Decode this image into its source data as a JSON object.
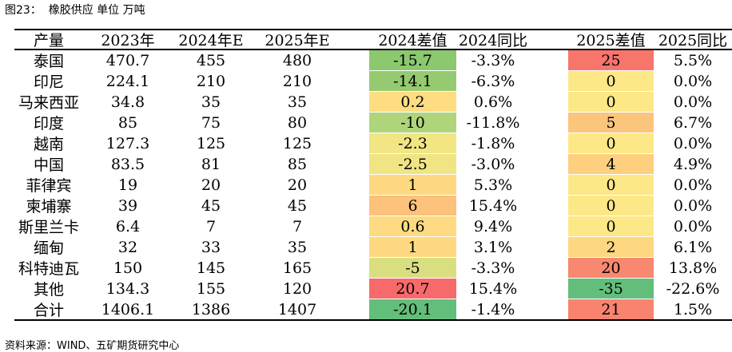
{
  "caption": "图23：  橡胶供应 单位 万吨",
  "source": "资料来源：WIND、五矿期货研究中心",
  "headers": [
    "产量",
    "2023年",
    "2024年E",
    "2025年E",
    "2024差值",
    "2024同比",
    "2025差值",
    "2025同比"
  ],
  "rows": [
    {
      "name": "泰国",
      "y2023": "470.7",
      "y2024": "455",
      "y2025": "480",
      "d2024": "-15.7",
      "p2024": "-3.3%",
      "d2025": "25",
      "p2025": "5.5%",
      "c2024": "#8cc86e",
      "c2025": "#f8756c"
    },
    {
      "name": "印尼",
      "y2023": "224.1",
      "y2024": "210",
      "y2025": "210",
      "d2024": "-14.1",
      "p2024": "-6.3%",
      "d2025": "0",
      "p2025": "0.0%",
      "c2024": "#95ca70",
      "c2025": "#fde887"
    },
    {
      "name": "马来西亚",
      "y2023": "34.8",
      "y2024": "35",
      "y2025": "35",
      "d2024": "0.2",
      "p2024": "0.6%",
      "d2025": "0",
      "p2025": "0.0%",
      "c2024": "#fedd82",
      "c2025": "#fde887"
    },
    {
      "name": "印度",
      "y2023": "85",
      "y2024": "75",
      "y2025": "80",
      "d2024": "-10",
      "p2024": "-11.8%",
      "d2025": "5",
      "p2025": "6.7%",
      "c2024": "#b0d47a",
      "c2025": "#fcc57c"
    },
    {
      "name": "越南",
      "y2023": "127.3",
      "y2024": "125",
      "y2025": "125",
      "d2024": "-2.3",
      "p2024": "-1.8%",
      "d2025": "0",
      "p2025": "0.0%",
      "c2024": "#f2e584",
      "c2025": "#fde887"
    },
    {
      "name": "中国",
      "y2023": "83.5",
      "y2024": "81",
      "y2025": "85",
      "d2024": "-2.5",
      "p2024": "-3.0%",
      "d2025": "4",
      "p2025": "4.9%",
      "c2024": "#f0e484",
      "c2025": "#fdcf7e"
    },
    {
      "name": "菲律宾",
      "y2023": "19",
      "y2024": "20",
      "y2025": "20",
      "d2024": "1",
      "p2024": "5.3%",
      "d2025": "0",
      "p2025": "0.0%",
      "c2024": "#fed981",
      "c2025": "#fde887"
    },
    {
      "name": "柬埔寨",
      "y2023": "39",
      "y2024": "45",
      "y2025": "45",
      "d2024": "6",
      "p2024": "15.4%",
      "d2025": "0",
      "p2025": "0.0%",
      "c2024": "#fcc17b",
      "c2025": "#fde887"
    },
    {
      "name": "斯里兰卡",
      "y2023": "6.4",
      "y2024": "7",
      "y2025": "7",
      "d2024": "0.6",
      "p2024": "9.4%",
      "d2025": "0",
      "p2025": "0.0%",
      "c2024": "#fedb82",
      "c2025": "#fde887"
    },
    {
      "name": "缅甸",
      "y2023": "32",
      "y2024": "33",
      "y2025": "35",
      "d2024": "1",
      "p2024": "3.1%",
      "d2025": "2",
      "p2025": "6.1%",
      "c2024": "#fed981",
      "c2025": "#fdd880"
    },
    {
      "name": "科特迪瓦",
      "y2023": "150",
      "y2024": "145",
      "y2025": "165",
      "d2024": "-5",
      "p2024": "-3.3%",
      "d2025": "20",
      "p2025": "13.8%",
      "c2024": "#d9df80",
      "c2025": "#f98870"
    },
    {
      "name": "其他",
      "y2023": "134.3",
      "y2024": "155",
      "y2025": "120",
      "d2024": "20.7",
      "p2024": "15.4%",
      "d2025": "-35",
      "p2025": "-22.6%",
      "c2024": "#f8696b",
      "c2025": "#63be7b"
    },
    {
      "name": "合计",
      "y2023": "1406.1",
      "y2024": "1386",
      "y2025": "1407",
      "d2024": "-20.1",
      "p2024": "-1.4%",
      "d2025": "21",
      "p2025": "1.5%",
      "c2024": "#63be7b",
      "c2025": "#f8846f"
    }
  ]
}
